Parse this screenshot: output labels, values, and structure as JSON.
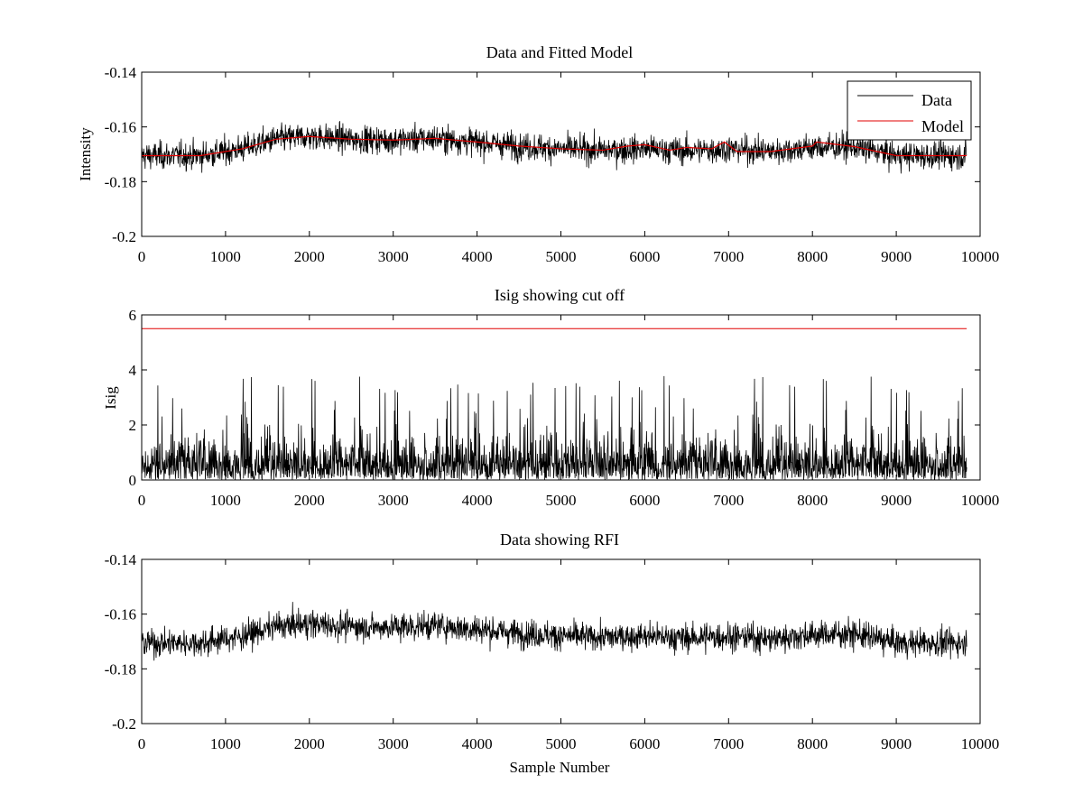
{
  "figure": {
    "colors": {
      "data": "#000000",
      "model": "#e00000",
      "cutoff": "#e00000",
      "axes": "#000000"
    }
  },
  "chart_data": [
    {
      "type": "line",
      "title": "Data and Fitted Model",
      "xlabel": "",
      "ylabel": "Intensity",
      "xlim": [
        0,
        10000
      ],
      "ylim": [
        -0.2,
        -0.14
      ],
      "reversed_y": true,
      "x_ticks": [
        "0",
        "1000",
        "2000",
        "3000",
        "4000",
        "5000",
        "6000",
        "7000",
        "8000",
        "9000",
        "10000"
      ],
      "y_ticks": [
        "-0.14",
        "-0.16",
        "-0.18",
        "-0.2"
      ],
      "grid": false,
      "legend": {
        "position": "top-right",
        "entries": [
          "Data",
          "Model"
        ]
      },
      "series": [
        {
          "name": "Data",
          "style": "noisy-trace",
          "x_end": 9840,
          "trend_x": [
            0,
            700,
            1200,
            1600,
            2000,
            2500,
            3000,
            3500,
            4000,
            4500,
            5000,
            5500,
            6000,
            6500,
            7000,
            7500,
            8000,
            8500,
            9000,
            9500,
            9840
          ],
          "trend_y": [
            -0.1705,
            -0.1705,
            -0.168,
            -0.1645,
            -0.1635,
            -0.1645,
            -0.1648,
            -0.1642,
            -0.1655,
            -0.167,
            -0.168,
            -0.1685,
            -0.168,
            -0.1688,
            -0.168,
            -0.169,
            -0.1675,
            -0.1672,
            -0.1705,
            -0.1705,
            -0.1705
          ],
          "noise_sd": 0.0045
        },
        {
          "name": "Model",
          "x": [
            0,
            700,
            1200,
            1600,
            2000,
            2500,
            3000,
            3500,
            4000,
            4500,
            5000,
            5500,
            5800,
            6000,
            6300,
            6500,
            6800,
            6950,
            7100,
            7500,
            8000,
            8050,
            8500,
            9000,
            9500,
            9840
          ],
          "y": [
            -0.1705,
            -0.1705,
            -0.168,
            -0.1645,
            -0.1635,
            -0.1645,
            -0.1648,
            -0.1642,
            -0.1655,
            -0.167,
            -0.168,
            -0.1685,
            -0.167,
            -0.1665,
            -0.1685,
            -0.1675,
            -0.168,
            -0.1655,
            -0.169,
            -0.169,
            -0.167,
            -0.1655,
            -0.1672,
            -0.1705,
            -0.1705,
            -0.1705
          ]
        }
      ]
    },
    {
      "type": "line",
      "title": "Isig showing cut off",
      "xlabel": "",
      "ylabel": "Isig",
      "xlim": [
        0,
        10000
      ],
      "ylim": [
        0,
        6
      ],
      "x_ticks": [
        "0",
        "1000",
        "2000",
        "3000",
        "4000",
        "5000",
        "6000",
        "7000",
        "8000",
        "9000",
        "10000"
      ],
      "y_ticks": [
        "0",
        "2",
        "4",
        "6"
      ],
      "grid": false,
      "series": [
        {
          "style": "abs-noise",
          "x_end": 9840,
          "typical_max": 1.8,
          "peak_max": 3.8
        },
        {
          "style": "cutoff-line",
          "x": [
            0,
            9840
          ],
          "y": [
            5.5,
            5.5
          ]
        }
      ]
    },
    {
      "type": "line",
      "title": "Data showing RFI",
      "xlabel": "Sample Number",
      "ylabel": "",
      "xlim": [
        0,
        10000
      ],
      "ylim": [
        -0.2,
        -0.14
      ],
      "reversed_y": true,
      "x_ticks": [
        "0",
        "1000",
        "2000",
        "3000",
        "4000",
        "5000",
        "6000",
        "7000",
        "8000",
        "9000",
        "10000"
      ],
      "y_ticks": [
        "-0.14",
        "-0.16",
        "-0.18",
        "-0.2"
      ],
      "grid": false,
      "series": [
        {
          "style": "noisy-trace",
          "x_end": 9840,
          "trend_x": [
            0,
            700,
            1200,
            1600,
            2000,
            2500,
            3000,
            3500,
            4000,
            4500,
            5000,
            5500,
            6000,
            6500,
            7000,
            7500,
            8000,
            8500,
            9000,
            9500,
            9840
          ],
          "trend_y": [
            -0.1705,
            -0.1705,
            -0.168,
            -0.1645,
            -0.1635,
            -0.1645,
            -0.1648,
            -0.1642,
            -0.1655,
            -0.167,
            -0.168,
            -0.1685,
            -0.168,
            -0.1688,
            -0.168,
            -0.169,
            -0.1675,
            -0.1672,
            -0.1705,
            -0.1705,
            -0.1705
          ],
          "noise_sd": 0.0045
        }
      ]
    }
  ]
}
